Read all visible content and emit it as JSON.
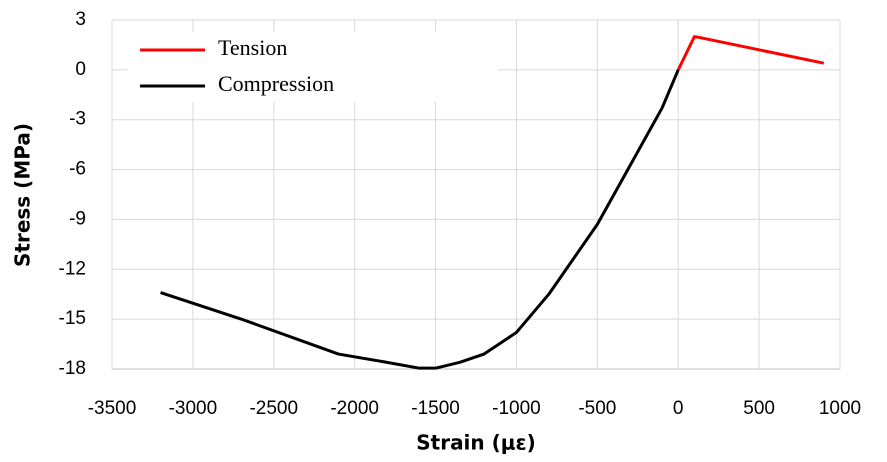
{
  "chart_data": {
    "type": "line",
    "xlabel": "Strain (με)",
    "ylabel": "Stress (MPa)",
    "xlim": [
      -3500,
      1000
    ],
    "xticks": [
      -3500,
      -3000,
      -2500,
      -2000,
      -1500,
      -1000,
      -500,
      0,
      500,
      1000
    ],
    "ylim": [
      -18,
      3
    ],
    "yticks": [
      3,
      0,
      -3,
      -6,
      -9,
      -12,
      -15,
      -18
    ],
    "grid": true,
    "legend": "upper left",
    "series": [
      {
        "name": "Tension",
        "color": "#ff0000",
        "x": [
          0,
          100,
          130,
          900
        ],
        "values": [
          0,
          2,
          1.95,
          0.4
        ]
      },
      {
        "name": "Compression",
        "color": "#000000",
        "x": [
          -3200,
          -2700,
          -2100,
          -1800,
          -1600,
          -1500,
          -1350,
          -1200,
          -1000,
          -800,
          -500,
          -300,
          -100,
          0
        ],
        "values": [
          -13.4,
          -15,
          -17.1,
          -17.6,
          -17.95,
          -17.95,
          -17.6,
          -17.1,
          -15.8,
          -13.5,
          -9.3,
          -5.8,
          -2.3,
          0
        ]
      }
    ]
  }
}
